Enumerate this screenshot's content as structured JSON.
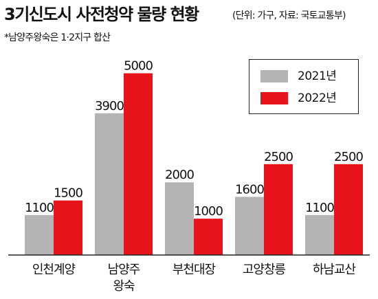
{
  "header": {
    "title": "3기신도시 사전청약 물량 현황",
    "unit_source": "(단위: 가구, 자료: 국토교통부)",
    "note": "*남양주왕숙은 1·2지구 합산"
  },
  "chart_data": {
    "type": "bar",
    "categories": [
      "인천계양",
      "남양주 왕숙",
      "부천대장",
      "고양창릉",
      "하남교산"
    ],
    "series": [
      {
        "name": "2021년",
        "color": "#b4b4b4",
        "values": [
          1100,
          3900,
          2000,
          1600,
          1100
        ]
      },
      {
        "name": "2022년",
        "color": "#e8141c",
        "values": [
          1500,
          5000,
          1000,
          2500,
          2500
        ]
      }
    ],
    "title": "3기신도시 사전청약 물량 현황",
    "xlabel": "",
    "ylabel": "",
    "ylim": [
      0,
      5200
    ],
    "grid": false,
    "legend_position": "top-right",
    "data_labels": true
  }
}
